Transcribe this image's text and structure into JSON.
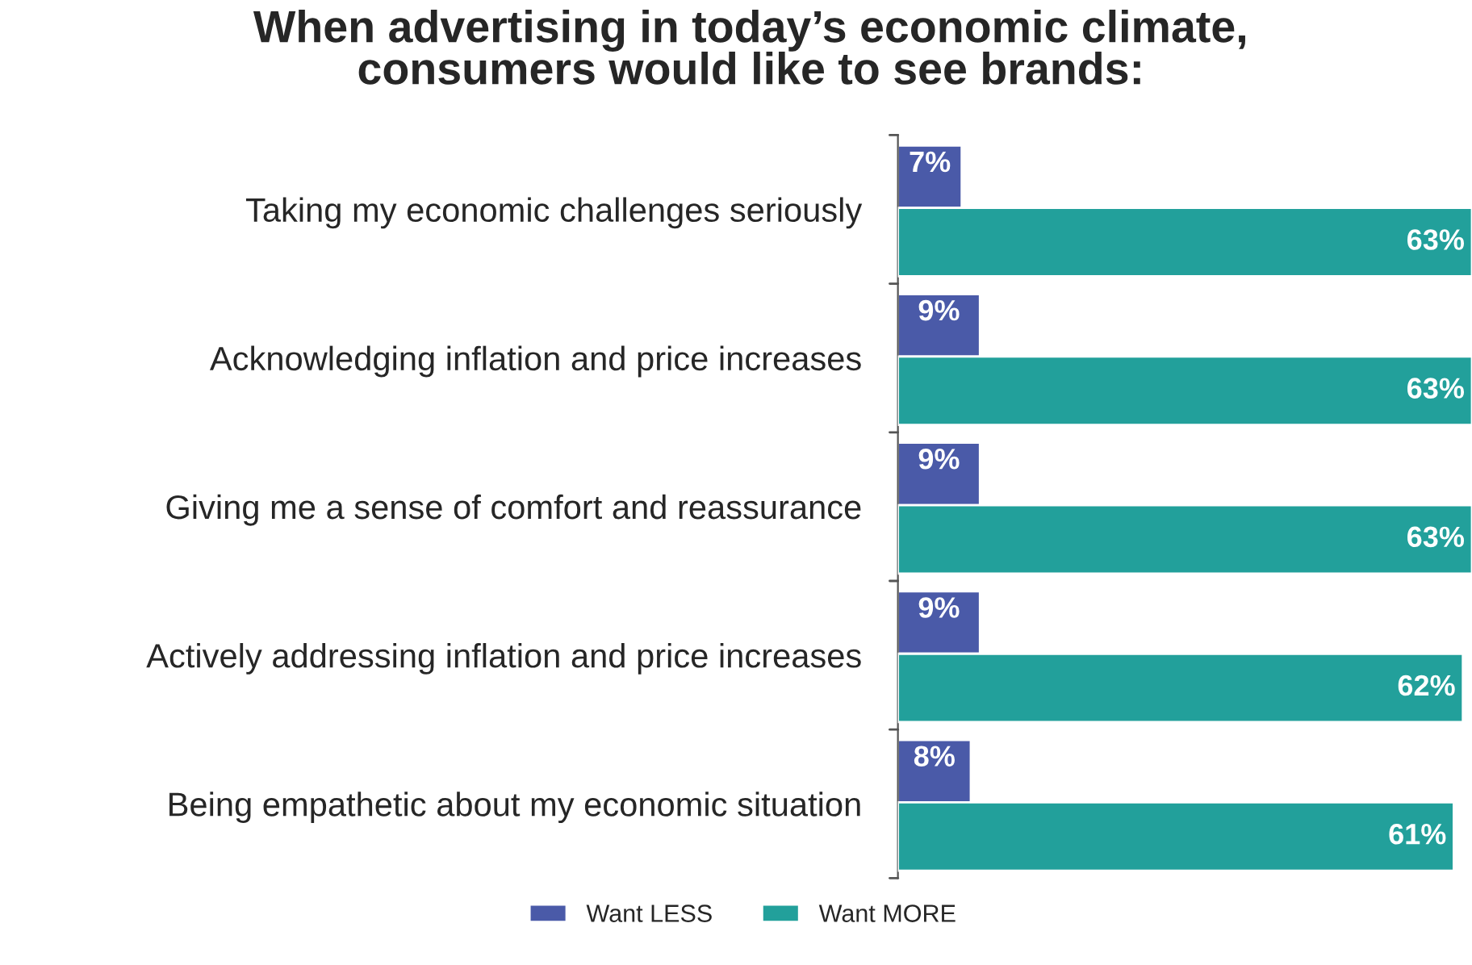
{
  "chart_data": {
    "type": "bar",
    "orientation": "horizontal",
    "title": "When advertising in today’s economic climate,\nconsumers would like to see brands:",
    "categories": [
      "Taking my economic challenges seriously",
      "Acknowledging inflation and price increases",
      "Giving me a sense of comfort and reassurance",
      "Actively addressing inflation and price increases",
      "Being empathetic about my economic situation"
    ],
    "series": [
      {
        "name": "Want LESS",
        "color": "#4a5aa8",
        "values": [
          7,
          9,
          9,
          9,
          8
        ],
        "value_labels": [
          "7%",
          "9%",
          "9%",
          "9%",
          "8%"
        ]
      },
      {
        "name": "Want MORE",
        "color": "#22a09b",
        "values": [
          63,
          63,
          63,
          62,
          61
        ],
        "value_labels": [
          "63%",
          "63%",
          "63%",
          "62%",
          "61%"
        ]
      }
    ],
    "legend": "bottom",
    "grid": false
  }
}
